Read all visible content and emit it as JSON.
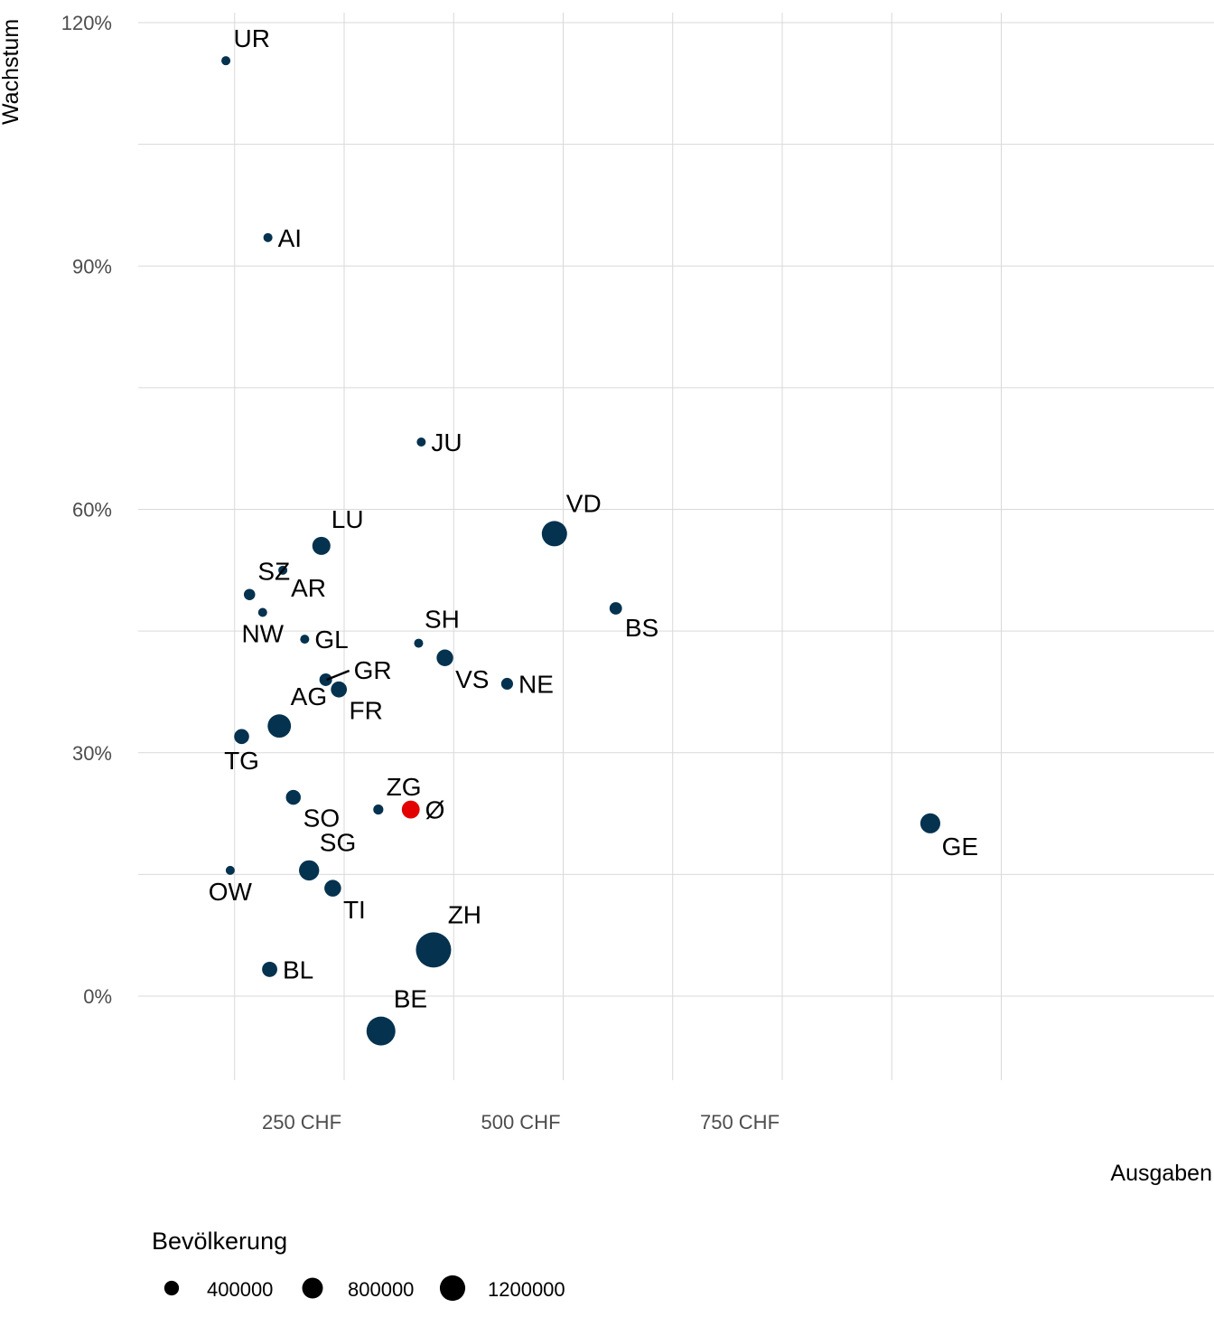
{
  "chart_data": {
    "type": "scatter",
    "title": "",
    "xlabel": "Ausgaben",
    "ylabel": "Wachstum",
    "xlim": [
      50,
      1000
    ],
    "ylim": [
      -10,
      122
    ],
    "x_ticks": [
      {
        "value": 250,
        "label": "250 CHF"
      },
      {
        "value": 500,
        "label": "500 CHF"
      },
      {
        "value": 750,
        "label": "750 CHF"
      }
    ],
    "y_ticks": [
      {
        "value": 0,
        "label": "0%"
      },
      {
        "value": 30,
        "label": "30%"
      },
      {
        "value": 60,
        "label": "60%"
      },
      {
        "value": 90,
        "label": "90%"
      },
      {
        "value": 120,
        "label": "120%"
      }
    ],
    "grid": true,
    "colors": {
      "point": "#04324f",
      "average": "#e20000",
      "grid": "#d9d9d9"
    },
    "points": [
      {
        "label": "UR",
        "x": 115,
        "y": 115.3,
        "population": 36000,
        "label_pos": "above-right"
      },
      {
        "label": "AI",
        "x": 163,
        "y": 93.5,
        "population": 16000,
        "label_pos": "right"
      },
      {
        "label": "JU",
        "x": 338,
        "y": 68.3,
        "population": 73000,
        "label_pos": "right"
      },
      {
        "label": "LU",
        "x": 224,
        "y": 55.5,
        "population": 410000,
        "label_pos": "above-right"
      },
      {
        "label": "VD",
        "x": 490,
        "y": 57.0,
        "population": 800000,
        "label_pos": "above-right"
      },
      {
        "label": "AR",
        "x": 180,
        "y": 52.5,
        "population": 55000,
        "label_pos": "below-right"
      },
      {
        "label": "SZ",
        "x": 142,
        "y": 49.5,
        "population": 160000,
        "label_pos": "above-right"
      },
      {
        "label": "BS",
        "x": 560,
        "y": 47.8,
        "population": 195000,
        "label_pos": "below-right"
      },
      {
        "label": "NW",
        "x": 157,
        "y": 47.3,
        "population": 43000,
        "label_pos": "below"
      },
      {
        "label": "GL",
        "x": 205,
        "y": 44.0,
        "population": 40000,
        "label_pos": "right"
      },
      {
        "label": "SH",
        "x": 335,
        "y": 43.5,
        "population": 82000,
        "label_pos": "above"
      },
      {
        "label": "VS",
        "x": 365,
        "y": 41.7,
        "population": 345000,
        "label_pos": "below-right"
      },
      {
        "label": "GR",
        "x": 229,
        "y": 39.0,
        "population": 200000,
        "label_pos": "right-leader"
      },
      {
        "label": "NE",
        "x": 436,
        "y": 38.5,
        "population": 176000,
        "label_pos": "right"
      },
      {
        "label": "FR",
        "x": 244,
        "y": 37.8,
        "population": 320000,
        "label_pos": "below-right"
      },
      {
        "label": "AG",
        "x": 176,
        "y": 33.3,
        "population": 680000,
        "label_pos": "above-right"
      },
      {
        "label": "TG",
        "x": 133,
        "y": 32.0,
        "population": 280000,
        "label_pos": "below"
      },
      {
        "label": "SO",
        "x": 192,
        "y": 24.5,
        "population": 275000,
        "label_pos": "below-right"
      },
      {
        "label": "ZG",
        "x": 289,
        "y": 23.0,
        "population": 127000,
        "label_pos": "above-right"
      },
      {
        "label": "Ø",
        "x": 326,
        "y": 23.0,
        "population": 400000,
        "label_pos": "right",
        "average": true
      },
      {
        "label": "GE",
        "x": 919,
        "y": 21.3,
        "population": 500000,
        "label_pos": "below-right"
      },
      {
        "label": "OW",
        "x": 120,
        "y": 15.5,
        "population": 38000,
        "label_pos": "below"
      },
      {
        "label": "SG",
        "x": 210,
        "y": 15.5,
        "population": 510000,
        "label_pos": "above-right"
      },
      {
        "label": "TI",
        "x": 237,
        "y": 13.3,
        "population": 350000,
        "label_pos": "below-right"
      },
      {
        "label": "ZH",
        "x": 352,
        "y": 5.7,
        "population": 1550000,
        "label_pos": "above-right"
      },
      {
        "label": "BL",
        "x": 165,
        "y": 3.3,
        "population": 290000,
        "label_pos": "right"
      },
      {
        "label": "BE",
        "x": 292,
        "y": -4.3,
        "population": 1040000,
        "label_pos": "above-right"
      }
    ],
    "legend": {
      "title": "Bevölkerung",
      "position": "bottom",
      "entries": [
        {
          "label": "400000",
          "value": 400000
        },
        {
          "label": "800000",
          "value": 800000
        },
        {
          "label": "1200000",
          "value": 1200000
        }
      ]
    }
  }
}
